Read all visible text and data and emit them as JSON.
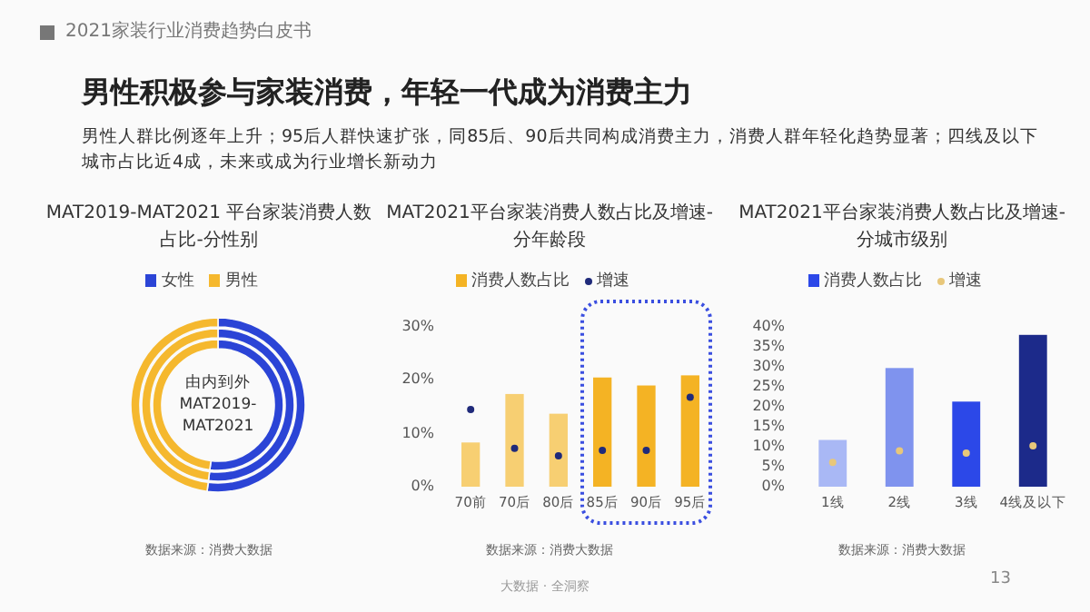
{
  "chart_data": [
    {
      "type": "other",
      "title": "男性积极参与家装消费，年轻一代成为消费主力",
      "subtitle": "男性人群比例逐年上升；95后人群快速扩张，同85后、90后共同构成消费主力，消费人群年轻化趋势显著；四线及以下城市占比近4成，未来或成为行业增长新动力",
      "annotations": [
        "2021家装行业消费趋势白皮书",
        "大数据 · 全洞察",
        "13"
      ]
    },
    {
      "type": "donut",
      "title": "MAT2019-MAT2021 平台家装消费人数占比-分性别",
      "categories": [
        "女性",
        "男性"
      ],
      "colors": [
        "#2b44d6",
        "#f5b82e"
      ],
      "legend": "top",
      "series": [
        {
          "values": [
            52,
            48
          ]
        },
        {
          "values": [
            52,
            48
          ]
        },
        {
          "values": [
            52,
            48
          ]
        }
      ],
      "annotations": [
        "由内到外 MAT2019-MAT2021",
        "数据来源：消费大数据"
      ]
    },
    {
      "type": "bar",
      "title": "MAT2021平台家装消费人数占比及增速-分年龄段",
      "categories": [
        "70前",
        "70后",
        "80后",
        "85后",
        "90后",
        "95后"
      ],
      "legend": "top",
      "ylim": [
        0,
        30
      ],
      "yticks": [
        {
          "value": 0,
          "label": "0%"
        },
        {
          "value": 10,
          "label": "10%"
        },
        {
          "value": 20,
          "label": "20%"
        },
        {
          "value": 30,
          "label": "30%"
        }
      ],
      "series": [
        {
          "name": "消费人数占比",
          "type": "bar",
          "color": "#f4b324",
          "colors": [
            "#f7cf72",
            "#f7cf72",
            "#f7cf72",
            "#f4b324",
            "#f4b324",
            "#f4b324"
          ],
          "values": [
            8.3,
            17.4,
            13.7,
            20.5,
            19.0,
            20.9
          ]
        },
        {
          "name": "增速",
          "type": "scatter",
          "color": "#1f2a7a",
          "values": [
            14.5,
            7.2,
            5.8,
            6.8,
            6.8,
            16.8
          ]
        }
      ],
      "annotations": [
        "数据来源：消费大数据"
      ]
    },
    {
      "type": "bar",
      "title": "MAT2021平台家装消费人数占比及增速-分城市级别",
      "categories": [
        "1线",
        "2线",
        "3线",
        "4线及以下"
      ],
      "legend": "top",
      "ylim": [
        0,
        40
      ],
      "yticks": [
        {
          "value": 0,
          "label": "0%"
        },
        {
          "value": 5,
          "label": "5%"
        },
        {
          "value": 10,
          "label": "10%"
        },
        {
          "value": 15,
          "label": "15%"
        },
        {
          "value": 20,
          "label": "20%"
        },
        {
          "value": 25,
          "label": "25%"
        },
        {
          "value": 30,
          "label": "30%"
        },
        {
          "value": 35,
          "label": "35%"
        },
        {
          "value": 40,
          "label": "40%"
        }
      ],
      "series": [
        {
          "name": "消费人数占比",
          "type": "bar",
          "color": "#2c48e8",
          "colors": [
            "#a9b8f5",
            "#7f93ee",
            "#2c48e8",
            "#1c2a8a"
          ],
          "values": [
            11.7,
            29.7,
            21.3,
            38.0
          ]
        },
        {
          "name": "增速",
          "type": "scatter",
          "color": "#e8c77a",
          "values": [
            6.1,
            9.0,
            8.4,
            10.2
          ]
        }
      ],
      "annotations": [
        "数据来源：消费大数据"
      ]
    }
  ]
}
